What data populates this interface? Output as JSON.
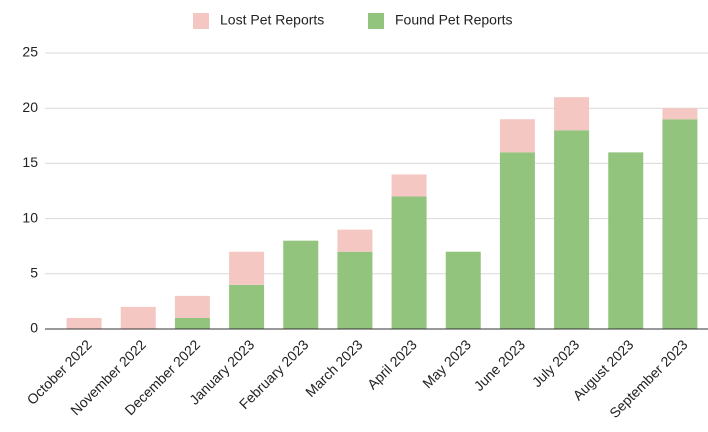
{
  "chart_data": {
    "type": "stacked_bar",
    "categories": [
      "October 2022",
      "November 2022",
      "December 2022",
      "January 2023",
      "February 2023",
      "March 2023",
      "April 2023",
      "May 2023",
      "June 2023",
      "July 2023",
      "August 2023",
      "September 2023"
    ],
    "series": [
      {
        "name": "Lost Pet Reports",
        "color": "#f4c7c3",
        "values": [
          1,
          2,
          2,
          3,
          0,
          2,
          2,
          0,
          3,
          3,
          0,
          1
        ]
      },
      {
        "name": "Found Pet Reports",
        "color": "#93c47d",
        "values": [
          0,
          0,
          1,
          4,
          8,
          7,
          12,
          7,
          16,
          18,
          16,
          19
        ]
      }
    ],
    "ylim": [
      0,
      25
    ],
    "yticks": [
      0,
      5,
      10,
      15,
      20,
      25
    ],
    "grid": true,
    "legend": "top"
  }
}
